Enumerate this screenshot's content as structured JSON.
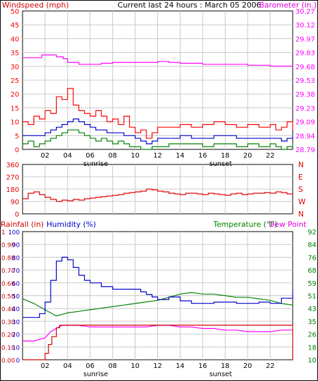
{
  "colors": {
    "wind_peak": "#ff0000",
    "wind_avg": "#0000c8",
    "wind_low": "#008000",
    "barometer": "#ff00ff",
    "direction": "#e00000",
    "rainfall": "#d00000",
    "humidity": "#0000c8",
    "temperature": "#008000",
    "dewpoint": "#ff00ff",
    "grid": "#c8c8c8",
    "axis": "#000000"
  },
  "header": {
    "title": "Current last 24 hours : March 05 2006"
  },
  "chart_data": [
    {
      "type": "line",
      "panel": "wind-barometer",
      "ylabel": "Windspeed (mph)",
      "y2label": "Barometer (in.)",
      "ylim": [
        0,
        50
      ],
      "y2lim": [
        28.79,
        30.27
      ],
      "y_ticks": [
        "0",
        "5",
        "10",
        "15",
        "20",
        "25",
        "30",
        "35",
        "40",
        "45",
        "50"
      ],
      "y2_ticks": [
        "28.79",
        "28.94",
        "29.09",
        "29.23",
        "29.38",
        "29.53",
        "29.68",
        "29.83",
        "29.97",
        "30.12",
        "30.27"
      ],
      "x_ticks": [
        "02",
        "04",
        "06",
        "08",
        "10",
        "12",
        "14",
        "16",
        "18",
        "20",
        "22"
      ],
      "x_annotations": [
        "sunrise",
        "sunset"
      ],
      "grid": true,
      "series": [
        {
          "name": "Barometer (in.)",
          "axis": "right",
          "x": [
            0,
            1,
            1.7,
            2.2,
            3.0,
            3.6,
            4.0,
            5.0,
            6.0,
            7.0,
            8.0,
            9.0,
            10.0,
            11.0,
            12.0,
            13.0,
            14.0,
            15.0,
            16.0,
            17.0,
            18.0,
            19.0,
            20.0,
            21.0,
            22.0,
            23.0,
            24.0
          ],
          "values": [
            29.77,
            29.77,
            29.8,
            29.8,
            29.78,
            29.76,
            29.72,
            29.7,
            29.7,
            29.71,
            29.72,
            29.72,
            29.72,
            29.72,
            29.73,
            29.72,
            29.71,
            29.71,
            29.7,
            29.7,
            29.7,
            29.7,
            29.69,
            29.69,
            29.68,
            29.68,
            29.68
          ]
        },
        {
          "name": "",
          "axis": "left",
          "x": [
            0,
            0.5,
            1.0,
            1.5,
            2.0,
            2.5,
            3.0,
            3.5,
            4.0,
            4.5,
            5.0,
            5.5,
            6.0,
            6.5,
            7.0,
            7.5,
            8.0,
            8.5,
            9.0,
            9.5,
            10.0,
            10.5,
            11.0,
            11.5,
            12.0,
            13.0,
            14.0,
            15.0,
            16.0,
            17.0,
            18.0,
            19.0,
            20.0,
            21.0,
            22.0,
            22.5,
            23.0,
            23.5,
            24.0
          ],
          "values": [
            10,
            9,
            12,
            11,
            14,
            13,
            19,
            18,
            22,
            16,
            14,
            13,
            12,
            14,
            12,
            10,
            11,
            9,
            12,
            8,
            6,
            7,
            4,
            6,
            8,
            8,
            9,
            8,
            9,
            10,
            9,
            8,
            9,
            8,
            9,
            7,
            8,
            10,
            7
          ]
        },
        {
          "name": "",
          "axis": "left",
          "x": [
            0,
            0.5,
            1.0,
            1.5,
            2.0,
            2.5,
            3.0,
            3.5,
            4.0,
            4.5,
            5.0,
            5.5,
            6.0,
            6.5,
            7.0,
            7.5,
            8.0,
            8.5,
            9.0,
            9.5,
            10.0,
            10.5,
            11.0,
            11.5,
            12.0,
            13.0,
            14.0,
            15.0,
            16.0,
            17.0,
            18.0,
            19.0,
            20.0,
            21.0,
            22.0,
            22.5,
            23.0,
            23.5,
            24.0
          ],
          "values": [
            5,
            5,
            5,
            5,
            6,
            7,
            8,
            9,
            10,
            11,
            10,
            9,
            8,
            7,
            7,
            6,
            6,
            6,
            5,
            5,
            4,
            3,
            2,
            3,
            4,
            4,
            5,
            4,
            4,
            5,
            5,
            4,
            4,
            4,
            4,
            4,
            3,
            4,
            5
          ]
        },
        {
          "name": "",
          "axis": "left",
          "x": [
            0,
            0.5,
            1.0,
            1.5,
            2.0,
            2.5,
            3.0,
            3.5,
            4.0,
            4.5,
            5.0,
            5.5,
            6.0,
            6.5,
            7.0,
            7.5,
            8.0,
            8.5,
            9.0,
            9.5,
            10.0,
            10.5,
            11.0,
            11.5,
            12.0,
            13.0,
            14.0,
            15.0,
            16.0,
            17.0,
            18.0,
            19.0,
            20.0,
            21.0,
            22.0,
            22.5,
            23.0,
            23.5,
            24.0
          ],
          "values": [
            2,
            3,
            1,
            2,
            3,
            4,
            5,
            6,
            7,
            7,
            6,
            5,
            4,
            3,
            4,
            3,
            2,
            3,
            2,
            1,
            1,
            0,
            0,
            1,
            1,
            2,
            2,
            2,
            1,
            2,
            2,
            1,
            2,
            1,
            2,
            1,
            0,
            1,
            2
          ]
        }
      ]
    },
    {
      "type": "line",
      "panel": "wind-direction",
      "ylim": [
        0,
        360
      ],
      "y_ticks": [
        "0",
        "90",
        "180",
        "270",
        "360"
      ],
      "y2_ticks": [
        "N",
        "W",
        "S",
        "E",
        "N"
      ],
      "grid": true,
      "series": [
        {
          "name": "",
          "x": [
            0,
            0.5,
            1,
            1.5,
            2,
            2.5,
            3,
            3.5,
            4,
            4.5,
            5,
            5.5,
            6,
            6.5,
            7,
            7.5,
            8,
            8.5,
            9,
            9.5,
            10,
            10.5,
            11,
            11.5,
            12,
            12.5,
            13,
            13.5,
            14,
            14.5,
            15,
            15.5,
            16,
            16.5,
            17,
            17.5,
            18,
            18.5,
            19,
            19.5,
            20,
            20.5,
            21,
            21.5,
            22,
            22.5,
            23,
            23.5,
            24
          ],
          "values": [
            110,
            150,
            160,
            140,
            120,
            105,
            90,
            100,
            95,
            105,
            100,
            110,
            115,
            120,
            125,
            130,
            135,
            140,
            150,
            155,
            160,
            165,
            180,
            175,
            165,
            160,
            150,
            145,
            140,
            150,
            150,
            145,
            140,
            150,
            145,
            140,
            135,
            145,
            150,
            140,
            145,
            150,
            150,
            155,
            150,
            160,
            155,
            145,
            150
          ]
        }
      ]
    },
    {
      "type": "line",
      "panel": "rain-humidity-temperature",
      "ylabel": "Rainfall (in)",
      "ylabel2": "Humidity (%)",
      "y2label": "Temperature (°F)",
      "y2label2": "Dew Point",
      "ylim": [
        0,
        1
      ],
      "ylim_humidity": [
        0,
        100
      ],
      "y2lim": [
        10,
        92
      ],
      "y_ticks_rain": [
        "0.00",
        "0.10",
        "0.20",
        "0.30",
        "0.40",
        "0.50",
        "0.60",
        "0.70",
        "0.80",
        "0.90",
        "1"
      ],
      "y_ticks_humidity": [
        "0",
        "10",
        "20",
        "30",
        "40",
        "50",
        "60",
        "70",
        "80",
        "90",
        "100"
      ],
      "y2_ticks": [
        "10",
        "18",
        "26",
        "35",
        "43",
        "51",
        "59",
        "68",
        "76",
        "84",
        "92"
      ],
      "x_ticks": [
        "02",
        "04",
        "06",
        "08",
        "10",
        "12",
        "14",
        "16",
        "18",
        "20",
        "22"
      ],
      "x_annotations": [
        "sunrise",
        "sunset"
      ],
      "grid": true,
      "series": [
        {
          "name": "Rainfall (in)",
          "axis": "left",
          "x": [
            0,
            1.8,
            2.0,
            2.3,
            2.6,
            3.0,
            3.3,
            23.0,
            23.95,
            24.0
          ],
          "values": [
            0,
            0,
            0.05,
            0.12,
            0.18,
            0.25,
            0.27,
            0.27,
            0.27,
            0
          ]
        },
        {
          "name": "Humidity (%)",
          "axis": "left",
          "x": [
            0,
            1,
            1.5,
            2,
            2.5,
            3,
            3.5,
            4,
            4.5,
            5,
            5.5,
            6,
            7,
            8,
            9,
            10,
            10.5,
            11,
            11.5,
            12,
            13,
            14,
            15,
            16,
            17,
            18,
            19,
            20,
            21,
            22,
            23,
            24
          ],
          "values": [
            33,
            33,
            36,
            45,
            62,
            77,
            80,
            78,
            72,
            66,
            62,
            60,
            57,
            55,
            55,
            55,
            53,
            51,
            49,
            47,
            49,
            46,
            44,
            44,
            45,
            45,
            44,
            44,
            45,
            44,
            48,
            54
          ]
        },
        {
          "name": "Temperature (°F)",
          "axis": "right",
          "x": [
            0,
            1,
            2,
            3,
            4,
            5,
            6,
            7,
            8,
            9,
            10,
            11,
            12,
            13,
            14,
            15,
            16,
            17,
            18,
            19,
            20,
            21,
            22,
            23,
            24
          ],
          "values": [
            49,
            46,
            42,
            38,
            40,
            41,
            42,
            43,
            44,
            45,
            46,
            47,
            48,
            50,
            52,
            53,
            52,
            52,
            51,
            50,
            50,
            49,
            48,
            46,
            45
          ]
        },
        {
          "name": "Dew Point",
          "axis": "right",
          "x": [
            0,
            1,
            2,
            2.5,
            3,
            3.5,
            4,
            5,
            6,
            7,
            8,
            9,
            10,
            11,
            12,
            13,
            14,
            15,
            16,
            17,
            18,
            19,
            20,
            21,
            22,
            23,
            24
          ],
          "values": [
            22,
            22,
            24,
            28,
            30,
            32,
            32,
            32,
            31,
            31,
            31,
            31,
            31,
            31,
            32,
            32,
            31,
            31,
            30,
            30,
            29,
            29,
            28,
            28,
            28,
            29,
            29
          ]
        }
      ]
    }
  ]
}
